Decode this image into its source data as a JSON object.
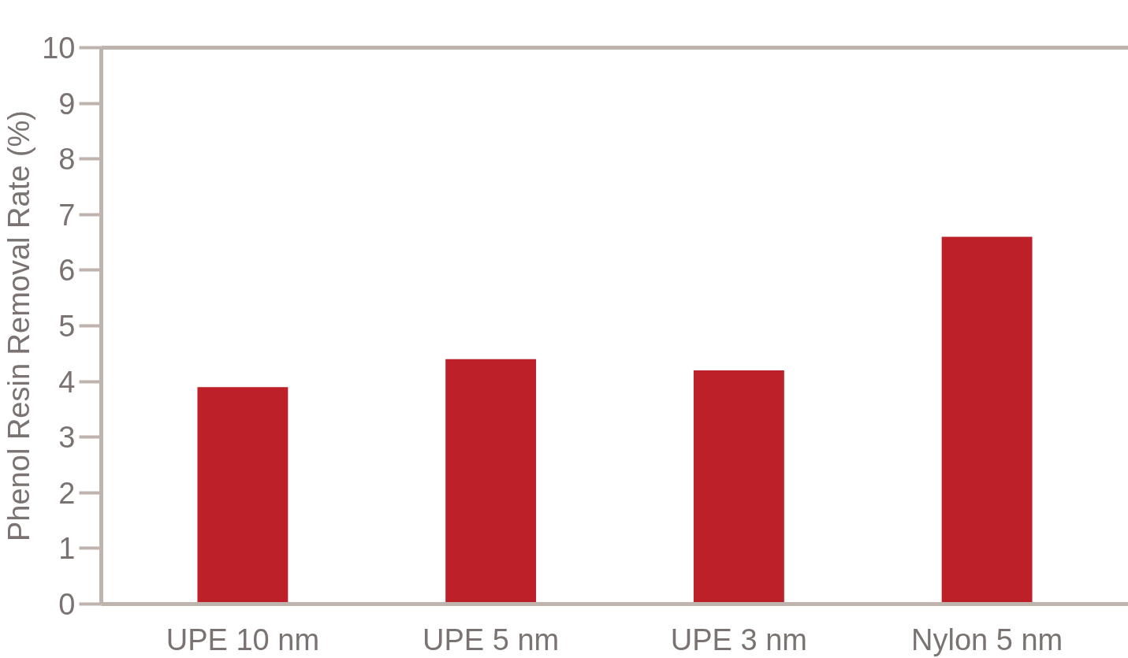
{
  "chart_data": {
    "type": "bar",
    "ylabel": "Phenol Resin Removal Rate (%)",
    "categories": [
      "UPE 10 nm",
      "UPE 5 nm",
      "UPE 3 nm",
      "Nylon 5 nm"
    ],
    "values": [
      3.9,
      4.4,
      4.2,
      6.6
    ],
    "color": "#be2029",
    "ylim": [
      0,
      10
    ],
    "yticks": [
      0,
      1,
      2,
      3,
      4,
      5,
      6,
      7,
      8,
      9,
      10
    ]
  }
}
